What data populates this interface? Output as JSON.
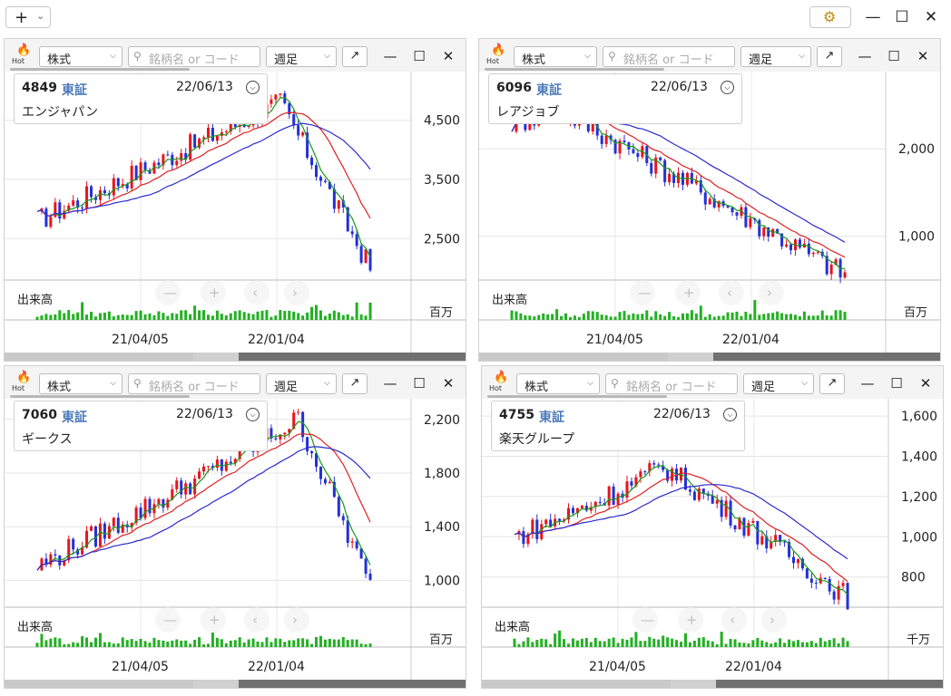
{
  "toolbar": {
    "add_label": "+",
    "add_chevron": "⌄",
    "settings_icon": "gear-icon",
    "settings_glyph": "⚙",
    "minimize": "—",
    "maximize": "☐",
    "close": "✕"
  },
  "panel_ui": {
    "hot_label": "Hot",
    "hot_glyph": "🔥",
    "type_label": "株式",
    "search_placeholder": "銘柄名 or コード",
    "search_glyph": "⚲",
    "period_label": "週足",
    "popout_glyph": "↗",
    "minimize": "—",
    "maximize": "☐",
    "close": "✕",
    "volume_label": "出来高",
    "arrow": "⌵",
    "nav_minus": "—",
    "nav_plus": "+",
    "nav_prev": "‹",
    "nav_next": "›"
  },
  "panels": [
    {
      "code": "4849",
      "market": "東証",
      "date": "22/06/13",
      "name": "エンジャパン",
      "yticks": [
        "4,500",
        "3,500",
        "2,500"
      ],
      "ytick_vals": [
        4500,
        3500,
        2500
      ],
      "ymin": 1800,
      "ymax": 5200,
      "start": 2800,
      "end": 2000,
      "peak_frac": 0.72,
      "peak": 4800,
      "trough": 2800,
      "vol_unit": "百万",
      "xdates": [
        "21/04/05",
        "22/01/04"
      ]
    },
    {
      "code": "6096",
      "market": "東証",
      "date": "22/06/13",
      "name": "レアジョブ",
      "yticks": [
        "2,000",
        "1,000"
      ],
      "ytick_vals": [
        2000,
        1000
      ],
      "ymin": 500,
      "ymax": 2800,
      "start": 2300,
      "end": 560,
      "peak_frac": 0.12,
      "peak": 2500,
      "trough": 2200,
      "vol_unit": "百万",
      "xdates": [
        "21/04/05",
        "22/01/04"
      ]
    },
    {
      "code": "7060",
      "market": "東証",
      "date": "22/06/13",
      "name": "ギークス",
      "yticks": [
        "2,200",
        "1,800",
        "1,400",
        "1,000"
      ],
      "ytick_vals": [
        2200,
        1800,
        1400,
        1000
      ],
      "ymin": 800,
      "ymax": 2300,
      "start": 1100,
      "end": 950,
      "peak_frac": 0.78,
      "peak": 2200,
      "trough": 1050,
      "vol_unit": "百万",
      "xdates": [
        "21/04/05",
        "22/01/04"
      ]
    },
    {
      "code": "4755",
      "market": "東証",
      "date": "22/06/13",
      "name": "楽天グループ",
      "yticks": [
        "1,600",
        "1,400",
        "1,200",
        "1,000",
        "800"
      ],
      "ytick_vals": [
        1600,
        1400,
        1200,
        1000,
        800
      ],
      "ymin": 650,
      "ymax": 1650,
      "start": 1000,
      "end": 700,
      "peak_frac": 0.45,
      "peak": 1350,
      "trough": 950,
      "vol_unit": "千万",
      "xdates": [
        "21/04/05",
        "22/01/04"
      ]
    }
  ],
  "colors": {
    "up": "#e8141c",
    "down": "#2330d8",
    "ma_short": "#1a9a1a",
    "ma_mid": "#e02020",
    "ma_long": "#2a2ad0",
    "volume": "#23b023"
  }
}
